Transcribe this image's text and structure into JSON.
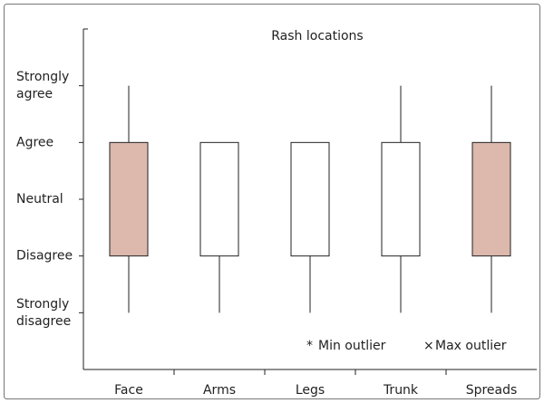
{
  "chart_data": {
    "type": "box",
    "title": "Rash locations",
    "categories": [
      "Face",
      "Arms",
      "Legs",
      "Trunk",
      "Spreads"
    ],
    "min": [
      1,
      1,
      1,
      1,
      1
    ],
    "q1": [
      2,
      2,
      2,
      2,
      2
    ],
    "q3": [
      4,
      4,
      4,
      4,
      4
    ],
    "max": [
      5,
      4,
      4,
      5,
      5
    ],
    "colors": [
      "#dcb8ad",
      "#ffffff",
      "#ffffff",
      "#ffffff",
      "#dcb8ad"
    ],
    "ylim": [
      0,
      6
    ],
    "yticks": [
      {
        "value": 1,
        "label": "Strongly disagree"
      },
      {
        "value": 2,
        "label": "Disagree"
      },
      {
        "value": 3,
        "label": "Neutral"
      },
      {
        "value": 4,
        "label": "Agree"
      },
      {
        "value": 5,
        "label": "Strongly agree"
      }
    ],
    "legend": [
      {
        "symbol": "*",
        "label": "Min outlier"
      },
      {
        "symbol": "×",
        "label": "Max outlier"
      }
    ]
  }
}
